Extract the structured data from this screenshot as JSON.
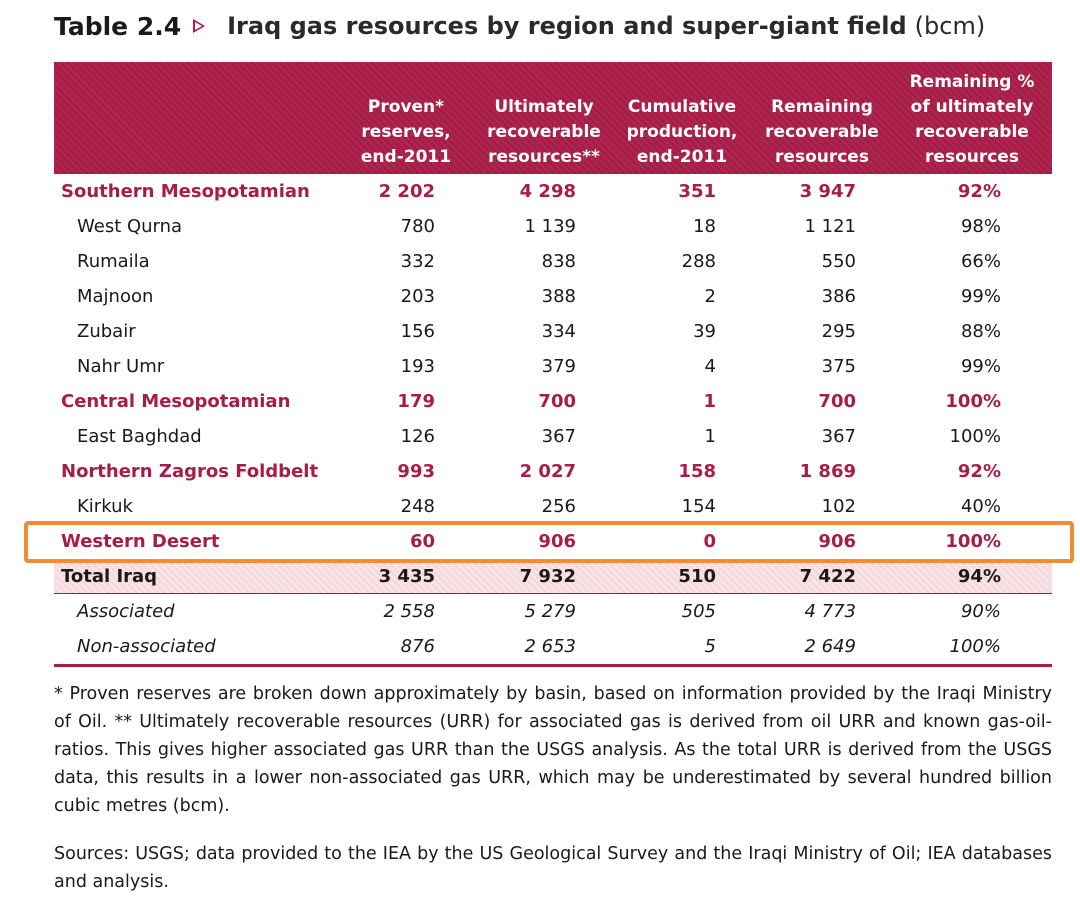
{
  "title": {
    "label": "Table 2.4",
    "text": "Iraq gas resources by region and super-giant field",
    "unit": "(bcm)"
  },
  "headers": [
    [
      "Proven*",
      "reserves,",
      "end-2011"
    ],
    [
      "Ultimately",
      "recoverable",
      "resources**"
    ],
    [
      "Cumulative",
      "production,",
      "end-2011"
    ],
    [
      "Remaining",
      "recoverable",
      "resources"
    ],
    [
      "Remaining %",
      "of ultimately",
      "recoverable",
      "resources"
    ]
  ],
  "rows": [
    {
      "type": "region",
      "label": "Southern Mesopotamian",
      "values": [
        "2 202",
        "4 298",
        "351",
        "3 947",
        "92%"
      ]
    },
    {
      "type": "field",
      "label": "West Qurna",
      "values": [
        "780",
        "1 139",
        "18",
        "1 121",
        "98%"
      ]
    },
    {
      "type": "field",
      "label": "Rumaila",
      "values": [
        "332",
        "838",
        "288",
        "550",
        "66%"
      ]
    },
    {
      "type": "field",
      "label": "Majnoon",
      "values": [
        "203",
        "388",
        "2",
        "386",
        "99%"
      ]
    },
    {
      "type": "field",
      "label": "Zubair",
      "values": [
        "156",
        "334",
        "39",
        "295",
        "88%"
      ]
    },
    {
      "type": "field",
      "label": "Nahr Umr",
      "values": [
        "193",
        "379",
        "4",
        "375",
        "99%"
      ]
    },
    {
      "type": "region",
      "label": "Central Mesopotamian",
      "values": [
        "179",
        "700",
        "1",
        "700",
        "100%"
      ]
    },
    {
      "type": "field",
      "label": "East Baghdad",
      "values": [
        "126",
        "367",
        "1",
        "367",
        "100%"
      ]
    },
    {
      "type": "region",
      "label": "Northern Zagros Foldbelt",
      "values": [
        "993",
        "2 027",
        "158",
        "1 869",
        "92%"
      ]
    },
    {
      "type": "field",
      "label": "Kirkuk",
      "values": [
        "248",
        "256",
        "154",
        "102",
        "40%"
      ]
    },
    {
      "type": "region",
      "label": "Western Desert",
      "values": [
        "60",
        "906",
        "0",
        "906",
        "100%"
      ]
    },
    {
      "type": "total",
      "label": "Total Iraq",
      "values": [
        "3 435",
        "7 932",
        "510",
        "7 422",
        "94%"
      ]
    },
    {
      "type": "italic",
      "label": "Associated",
      "values": [
        "2 558",
        "5 279",
        "505",
        "4 773",
        "90%"
      ]
    },
    {
      "type": "italic",
      "label": "Non-associated",
      "values": [
        "876",
        "2 653",
        "5",
        "2 649",
        "100%"
      ]
    }
  ],
  "notes": {
    "footnote": "* Proven reserves are broken down approximately by basin, based on information provided by the Iraqi Ministry of Oil. ** Ultimately recoverable resources (URR) for associated gas is derived from oil URR and known gas-oil-ratios. This gives higher associated gas URR than the USGS analysis. As the total URR is derived from the USGS data, this results in a lower non-associated gas URR, which may be underestimated by several hundred billion cubic metres (bcm).",
    "sources": "Sources: USGS; data provided to the IEA by the US Geological Survey and the Iraqi Ministry of Oil; IEA databases and analysis."
  },
  "colors": {
    "accent": "#a81d48",
    "highlight": "#f08c36",
    "total_bg": "#f6d9de"
  }
}
